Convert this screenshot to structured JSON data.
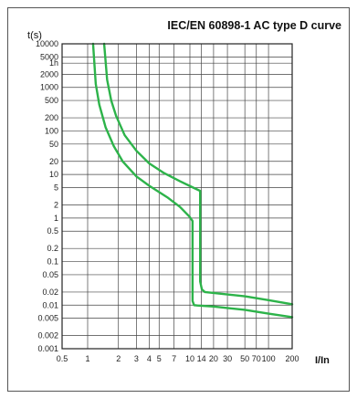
{
  "chart_data": {
    "type": "line",
    "title": "IEC/EN 60898-1 AC type D curve",
    "xlabel": "I/In",
    "ylabel": "t(s)",
    "x_scale": "log",
    "y_scale": "log",
    "xlim": [
      0.5,
      200
    ],
    "ylim": [
      0.001,
      10000
    ],
    "grid": true,
    "x_ticks": [
      {
        "value": 0.5,
        "label": "0.5"
      },
      {
        "value": 1,
        "label": "1"
      },
      {
        "value": 2,
        "label": "2"
      },
      {
        "value": 3,
        "label": "3"
      },
      {
        "value": 4,
        "label": "4"
      },
      {
        "value": 5,
        "label": "5"
      },
      {
        "value": 7,
        "label": "7"
      },
      {
        "value": 10,
        "label": "10"
      },
      {
        "value": 14,
        "label": "14"
      },
      {
        "value": 20,
        "label": "20"
      },
      {
        "value": 30,
        "label": "30"
      },
      {
        "value": 50,
        "label": "50"
      },
      {
        "value": 70,
        "label": "70"
      },
      {
        "value": 100,
        "label": "100"
      },
      {
        "value": 200,
        "label": "200"
      }
    ],
    "y_ticks": [
      {
        "value": 10000,
        "label": "10000"
      },
      {
        "value": 5000,
        "label": "5000"
      },
      {
        "value": 3600,
        "label": "1h"
      },
      {
        "value": 2000,
        "label": "2000"
      },
      {
        "value": 1000,
        "label": "1000"
      },
      {
        "value": 500,
        "label": "500"
      },
      {
        "value": 200,
        "label": "200"
      },
      {
        "value": 100,
        "label": "100"
      },
      {
        "value": 50,
        "label": "50"
      },
      {
        "value": 20,
        "label": "20"
      },
      {
        "value": 10,
        "label": "10"
      },
      {
        "value": 5,
        "label": "5"
      },
      {
        "value": 2,
        "label": "2"
      },
      {
        "value": 1,
        "label": "1"
      },
      {
        "value": 0.5,
        "label": "0.5"
      },
      {
        "value": 0.2,
        "label": "0.2"
      },
      {
        "value": 0.1,
        "label": "0.1"
      },
      {
        "value": 0.05,
        "label": "0.05"
      },
      {
        "value": 0.02,
        "label": "0.02"
      },
      {
        "value": 0.01,
        "label": "0.01"
      },
      {
        "value": 0.005,
        "label": "0.005"
      },
      {
        "value": 0.002,
        "label": "0.002"
      },
      {
        "value": 0.001,
        "label": "0.001"
      }
    ],
    "series": [
      {
        "color": "#2db34a",
        "points": [
          [
            1.13,
            10000
          ],
          [
            1.2,
            1200
          ],
          [
            1.3,
            400
          ],
          [
            1.5,
            120
          ],
          [
            1.8,
            45
          ],
          [
            2.2,
            20
          ],
          [
            3,
            9
          ],
          [
            4,
            5.5
          ],
          [
            6,
            3
          ],
          [
            8,
            1.8
          ],
          [
            10,
            1.05
          ],
          [
            10.8,
            0.85
          ],
          [
            10.8,
            0.0125
          ],
          [
            11.3,
            0.01
          ],
          [
            12.5,
            0.0098
          ],
          [
            20,
            0.0093
          ],
          [
            50,
            0.0078
          ],
          [
            100,
            0.0064
          ],
          [
            200,
            0.0053
          ]
        ]
      },
      {
        "color": "#2db34a",
        "points": [
          [
            1.45,
            10000
          ],
          [
            1.55,
            1500
          ],
          [
            1.7,
            500
          ],
          [
            1.9,
            220
          ],
          [
            2.3,
            80
          ],
          [
            3,
            35
          ],
          [
            4,
            18
          ],
          [
            5.5,
            11
          ],
          [
            8,
            7
          ],
          [
            11,
            5
          ],
          [
            13.5,
            4.2
          ],
          [
            13.5,
            0.035
          ],
          [
            14.2,
            0.023
          ],
          [
            15.5,
            0.02
          ],
          [
            20,
            0.019
          ],
          [
            50,
            0.016
          ],
          [
            100,
            0.013
          ],
          [
            200,
            0.0105
          ]
        ]
      }
    ]
  }
}
